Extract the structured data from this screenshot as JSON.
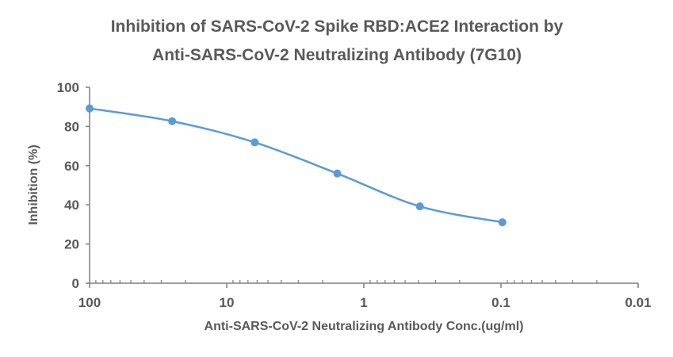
{
  "chart_data": {
    "type": "line",
    "title_lines": [
      "Inhibition of SARS-CoV-2 Spike RBD:ACE2 Interaction by",
      "Anti-SARS-CoV-2 Neutralizing Antibody (7G10)"
    ],
    "xlabel": "Anti-SARS-CoV-2 Neutralizing Antibody Conc.(ug/ml)",
    "ylabel": "Inhibition (%)",
    "x_scale": "log",
    "x_reversed": true,
    "xlim": [
      100,
      0.01
    ],
    "ylim": [
      0,
      100
    ],
    "x_ticks": [
      100,
      10,
      1,
      0.1,
      0.01
    ],
    "x_tick_labels": [
      "100",
      "10",
      "1",
      "0.1",
      "0.01"
    ],
    "y_ticks": [
      0,
      20,
      40,
      60,
      80,
      100
    ],
    "y_tick_labels": [
      "0",
      "20",
      "40",
      "60",
      "80",
      "100"
    ],
    "grid": false,
    "legend": "none",
    "series": [
      {
        "x": [
          100,
          25,
          6.25,
          1.5625,
          0.390625,
          0.09765625
        ],
        "y": [
          89.2,
          82.7,
          71.9,
          56.0,
          39.2,
          31.1
        ],
        "color": "#5B9BD5",
        "smooth": true,
        "markers": true
      }
    ]
  }
}
